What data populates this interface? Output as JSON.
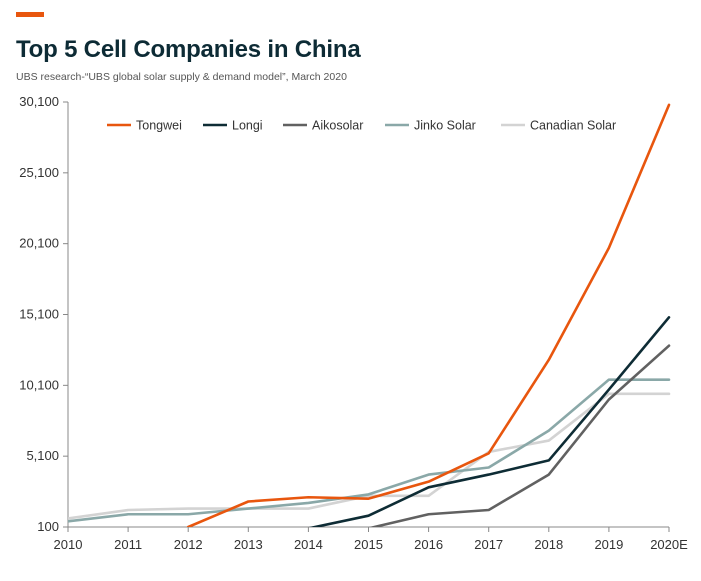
{
  "header": {
    "title": "Top 5 Cell Companies in China",
    "subtitle": "UBS research-“UBS global solar supply & demand model”,  March  2020"
  },
  "chart_data": {
    "type": "line",
    "title": "Top 5 Cell Companies in China",
    "subtitle": "UBS research-“UBS global solar supply & demand model”,  March  2020",
    "xlabel": "",
    "ylabel": "",
    "x": [
      "2010",
      "2011",
      "2012",
      "2013",
      "2014",
      "2015",
      "2016",
      "2017",
      "2018",
      "2019",
      "2020E"
    ],
    "ylim": [
      100,
      30100
    ],
    "yticks": [
      100,
      5100,
      10100,
      15100,
      20100,
      25100,
      30100
    ],
    "ytick_labels": [
      "100",
      "5,100",
      "10,100",
      "15,100",
      "20,100",
      "25,100",
      "30,100"
    ],
    "grid": false,
    "legend_position": "top",
    "series": [
      {
        "name": "Tongwei",
        "color": "#e8560e",
        "values": [
          null,
          null,
          100,
          1900,
          2200,
          2100,
          3300,
          5300,
          11900,
          19800,
          29900
        ]
      },
      {
        "name": "Longi",
        "color": "#0e2c35",
        "values": [
          null,
          null,
          null,
          null,
          0,
          900,
          2900,
          3800,
          4800,
          9800,
          14900
        ]
      },
      {
        "name": "Aikosolar",
        "color": "#616161",
        "values": [
          null,
          null,
          null,
          null,
          null,
          0,
          1000,
          1300,
          3800,
          9100,
          12900
        ]
      },
      {
        "name": "Jinko Solar",
        "color": "#8aa8a8",
        "values": [
          500,
          1000,
          1000,
          1400,
          1800,
          2400,
          3800,
          4300,
          6900,
          10500,
          10500
        ]
      },
      {
        "name": "Canadian Solar",
        "color": "#d3d3d3",
        "values": [
          700,
          1300,
          1400,
          1400,
          1400,
          2300,
          2300,
          5400,
          6200,
          9500,
          9500
        ]
      }
    ]
  }
}
